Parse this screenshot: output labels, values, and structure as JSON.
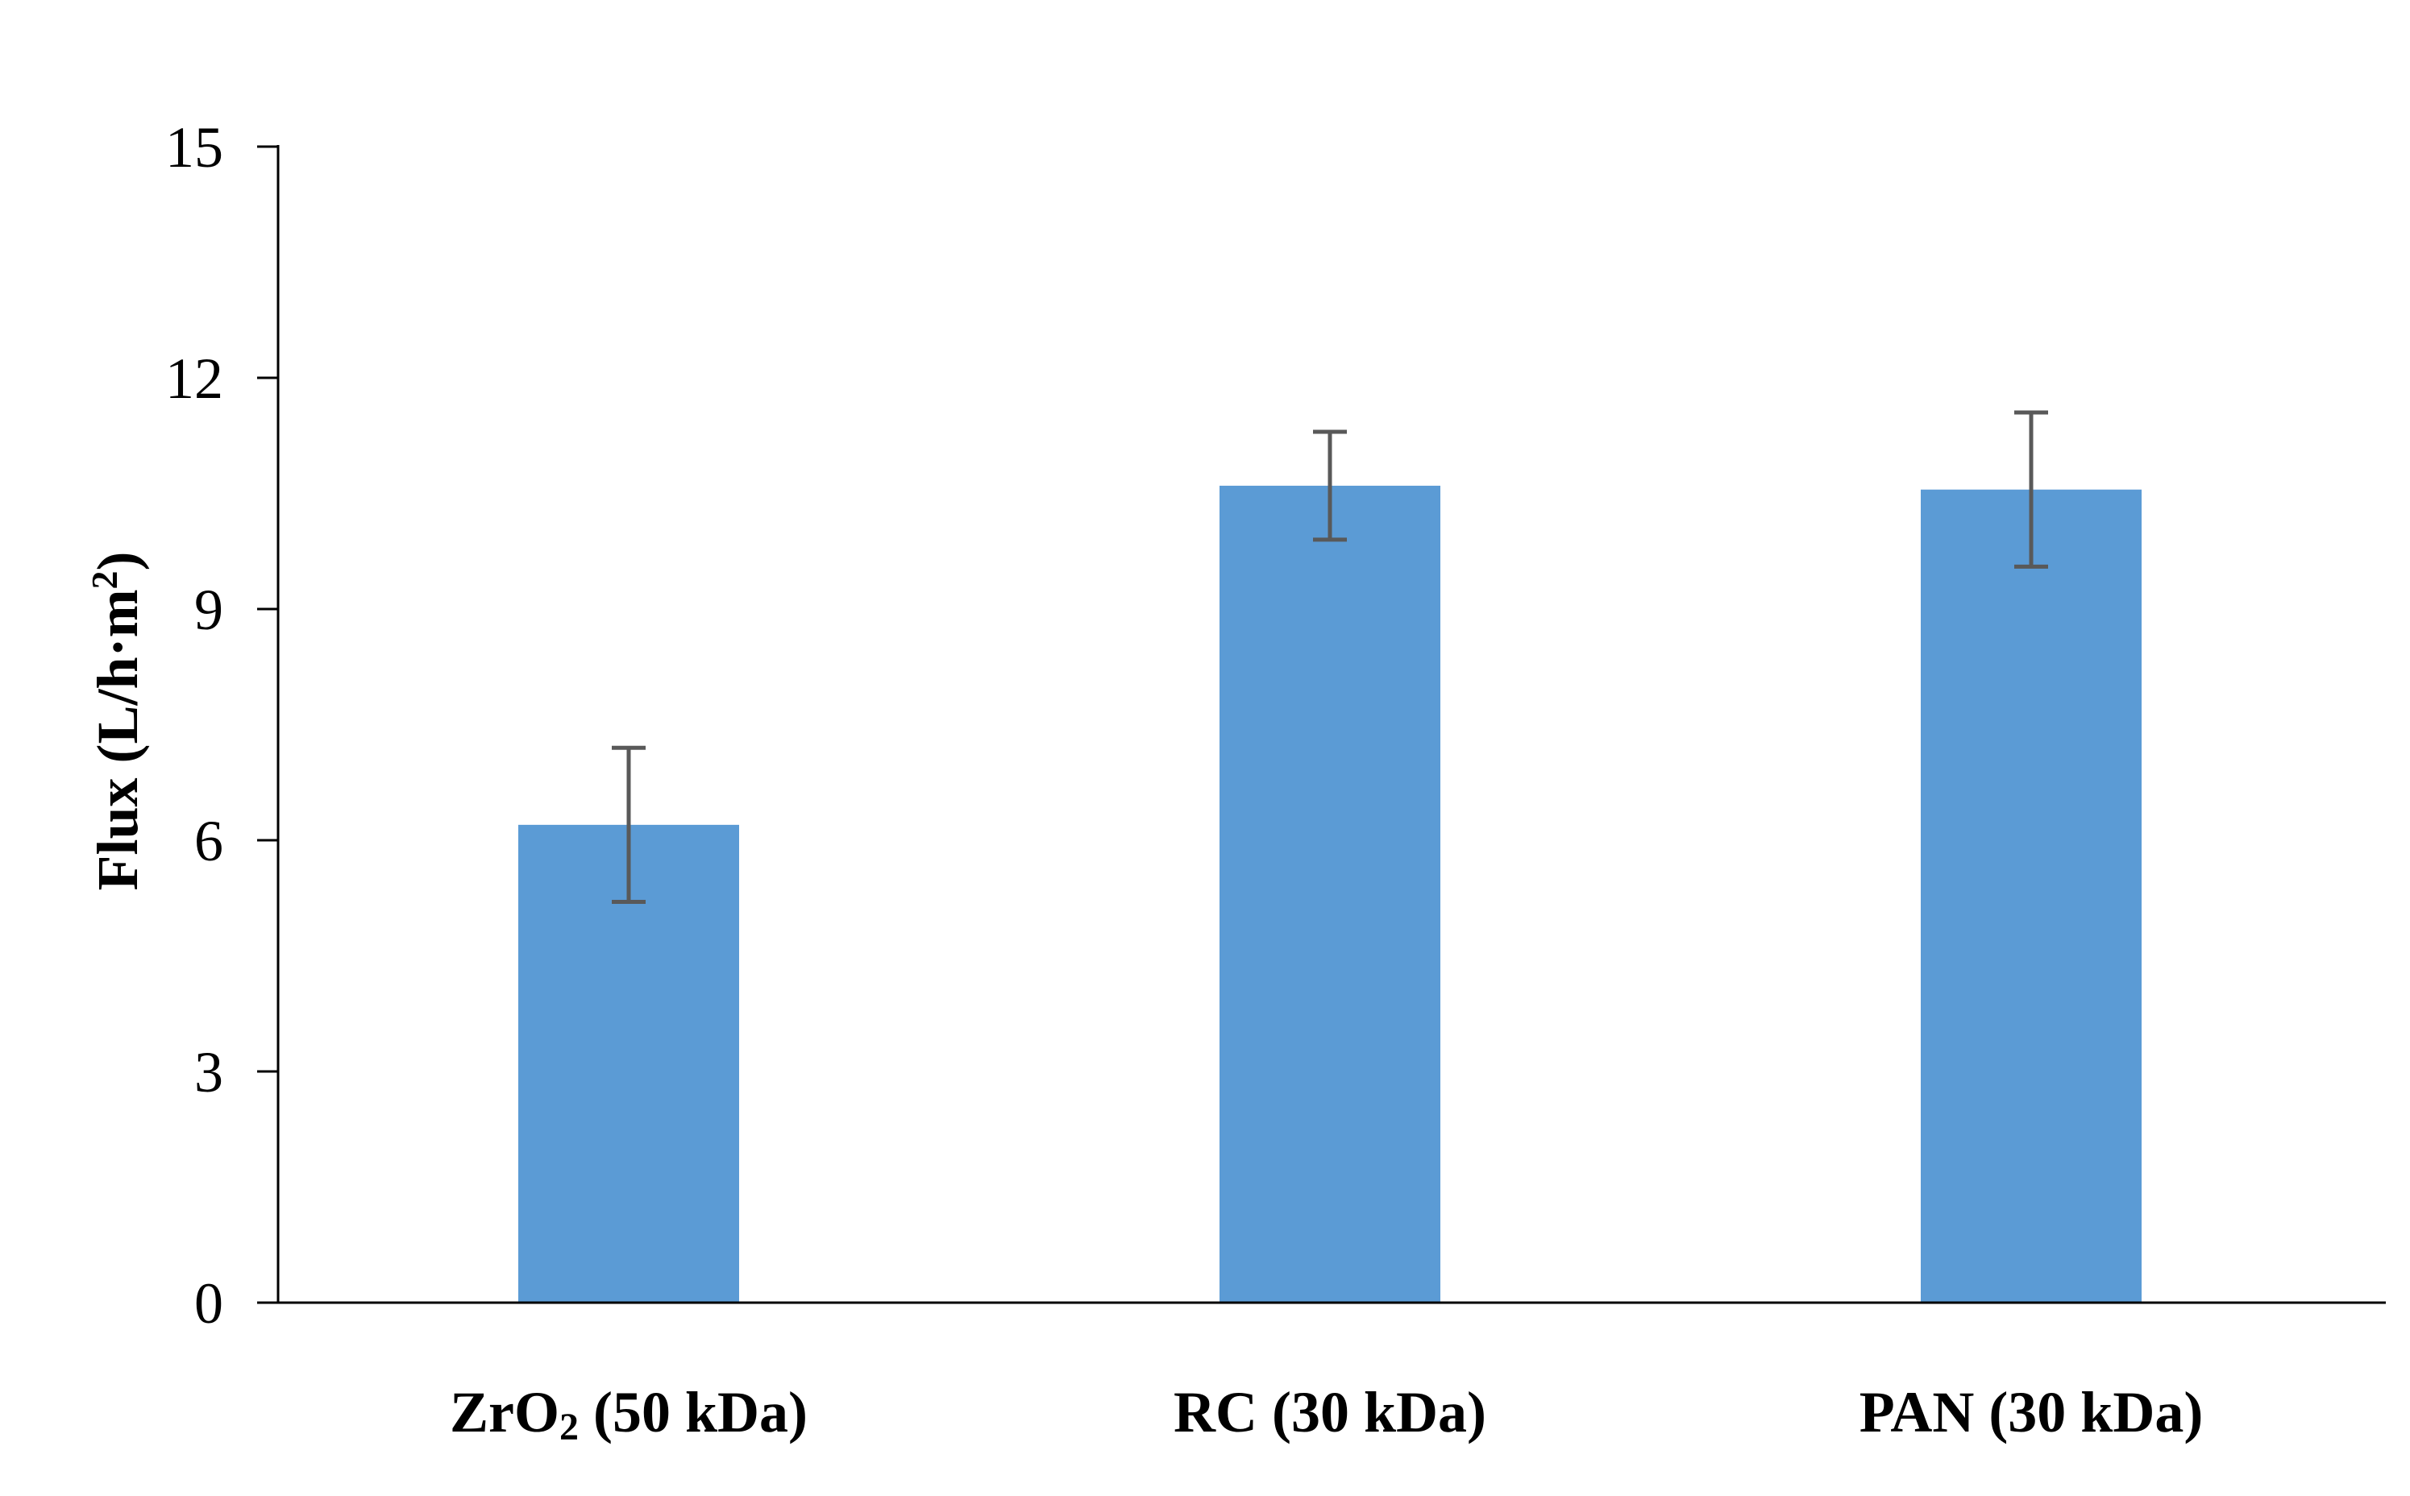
{
  "chart_data": {
    "type": "bar",
    "title": "",
    "xlabel": "",
    "ylabel": "Flux (L/h·m²)",
    "ylabel_parts": {
      "main": "Flux (L/h·m",
      "sup": "2",
      "close": ")"
    },
    "ylim": [
      0,
      15
    ],
    "yticks": [
      0,
      3,
      6,
      9,
      12,
      15
    ],
    "ytick_labels": [
      "0",
      "3",
      "6",
      "9",
      "12",
      "15"
    ],
    "categories": [
      "ZrO₂ (50 kDa)",
      "RC (30 kDa)",
      "PAN (30 kDa)"
    ],
    "category_label_parts": [
      {
        "pre": "ZrO",
        "sub": "2",
        "post": " (50 kDa)"
      },
      {
        "pre": "RC (30 kDa)",
        "sub": "",
        "post": ""
      },
      {
        "pre": "PAN (30 kDa)",
        "sub": "",
        "post": ""
      }
    ],
    "values": [
      6.2,
      10.6,
      10.55
    ],
    "errors": [
      1.0,
      0.7,
      1.0
    ],
    "grid": false,
    "legend": false,
    "colors": {
      "bar": "#5B9BD5",
      "error_bar": "#595959",
      "axis": "#000000"
    }
  }
}
